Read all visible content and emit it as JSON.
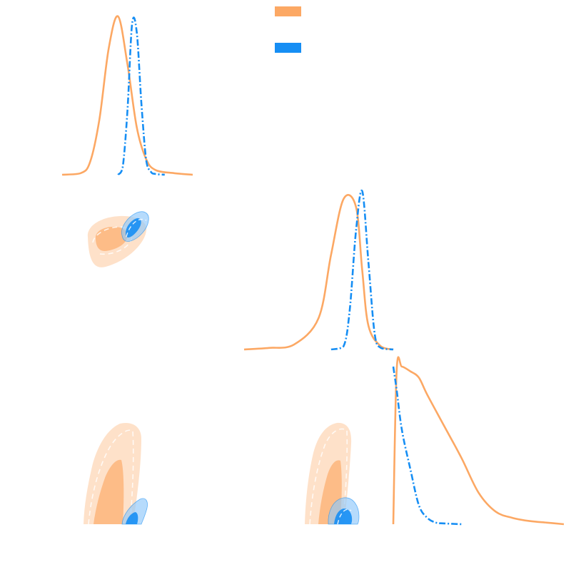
{
  "chart_data": {
    "type": "corner",
    "title": "",
    "legend": {
      "placement": "top-center",
      "entries": [
        {
          "name": "",
          "color": "#fca864"
        },
        {
          "name": "",
          "color": "#168ef4"
        }
      ]
    },
    "series": [
      {
        "name": "",
        "color": "#fca864",
        "linestyle": "solid",
        "marginals": [
          {
            "x": [
              -0.2,
              0.0,
              0.1,
              0.2,
              0.3,
              0.4,
              0.5,
              0.6,
              0.7,
              0.8,
              1.0,
              1.2
            ],
            "y": [
              0,
              0.01,
              0.08,
              0.35,
              0.8,
              1.0,
              0.7,
              0.3,
              0.1,
              0.03,
              0.01,
              0
            ]
          },
          {
            "x": [
              -0.2,
              0.0,
              0.2,
              0.4,
              0.5,
              0.6,
              0.7,
              0.75,
              0.8,
              0.9,
              1.0
            ],
            "y": [
              0,
              0.01,
              0.03,
              0.2,
              0.6,
              0.95,
              0.9,
              0.5,
              0.15,
              0.02,
              0
            ]
          },
          {
            "x": [
              0.0,
              0.02,
              0.05,
              0.1,
              0.15,
              0.2,
              0.3,
              0.4,
              0.5,
              0.6,
              0.7,
              0.8,
              0.9,
              1.0
            ],
            "y": [
              0,
              0.98,
              1.0,
              0.97,
              0.93,
              0.82,
              0.62,
              0.42,
              0.2,
              0.08,
              0.04,
              0.02,
              0.01,
              0
            ]
          }
        ]
      },
      {
        "name": "",
        "color": "#168ef4",
        "linestyle": "dashdot",
        "marginals": [
          {
            "x": [
              0.4,
              0.45,
              0.5,
              0.55,
              0.6,
              0.65,
              0.7,
              0.75,
              0.8,
              0.9
            ],
            "y": [
              0,
              0.05,
              0.4,
              0.95,
              0.9,
              0.45,
              0.1,
              0.02,
              0.005,
              0
            ]
          },
          {
            "x": [
              0.5,
              0.6,
              0.65,
              0.7,
              0.75,
              0.8,
              0.85,
              0.9,
              1.0
            ],
            "y": [
              0,
              0.02,
              0.25,
              0.75,
              1.0,
              0.55,
              0.1,
              0.01,
              0
            ]
          },
          {
            "x": [
              0.0,
              0.02,
              0.05,
              0.1,
              0.15,
              0.2,
              0.25,
              0.3,
              0.4
            ],
            "y": [
              1.0,
              0.85,
              0.6,
              0.35,
              0.12,
              0.04,
              0.01,
              0.005,
              0
            ]
          }
        ]
      }
    ]
  }
}
